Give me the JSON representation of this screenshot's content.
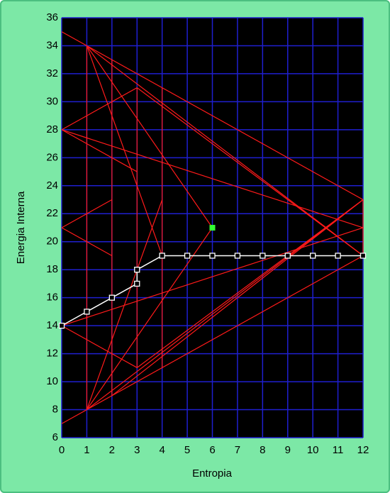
{
  "chart_data": {
    "type": "line",
    "x_label": "Entropia",
    "y_label": "Energia Interna",
    "xlim": [
      0,
      12
    ],
    "xticks": [
      0,
      1,
      2,
      3,
      4,
      5,
      6,
      7,
      8,
      9,
      10,
      11,
      12
    ],
    "ylim": [
      6,
      36
    ],
    "yticks": [
      6,
      8,
      10,
      12,
      14,
      16,
      18,
      20,
      22,
      24,
      26,
      28,
      30,
      32,
      34,
      36
    ],
    "grid": true,
    "grid_color": "#1f1fd0",
    "plot_background": "#000000",
    "series": [
      {
        "color": "#ffffff",
        "x": [
          0,
          1,
          2,
          3,
          3,
          4,
          5,
          6,
          7,
          8,
          9,
          10,
          11,
          12
        ],
        "y": [
          14,
          15,
          16,
          17,
          18,
          19,
          19,
          19,
          19,
          19,
          19,
          19,
          19,
          19
        ]
      }
    ],
    "point": {
      "color": "#33ff33",
      "x": 6,
      "y": 21
    },
    "segment_color": "#ff1a1a",
    "segments": [
      {
        "x": [
          0,
          12
        ],
        "y": [
          35,
          23
        ]
      },
      {
        "x": [
          0,
          12
        ],
        "y": [
          7,
          19
        ]
      },
      {
        "x": [
          1,
          1
        ],
        "y": [
          34,
          8
        ]
      },
      {
        "x": [
          0,
          3
        ],
        "y": [
          28,
          31
        ]
      },
      {
        "x": [
          0,
          3
        ],
        "y": [
          28,
          25
        ]
      },
      {
        "x": [
          0,
          2
        ],
        "y": [
          21,
          23
        ]
      },
      {
        "x": [
          0,
          2
        ],
        "y": [
          21,
          19
        ]
      },
      {
        "x": [
          0,
          3
        ],
        "y": [
          14,
          11
        ]
      },
      {
        "x": [
          1,
          12
        ],
        "y": [
          34,
          19
        ]
      },
      {
        "x": [
          1,
          12
        ],
        "y": [
          8,
          23
        ]
      },
      {
        "x": [
          2,
          12
        ],
        "y": [
          9,
          23
        ]
      },
      {
        "x": [
          3,
          12
        ],
        "y": [
          31,
          19
        ]
      },
      {
        "x": [
          3,
          12
        ],
        "y": [
          11,
          23
        ]
      },
      {
        "x": [
          1,
          6
        ],
        "y": [
          34,
          21
        ]
      },
      {
        "x": [
          1,
          6
        ],
        "y": [
          8,
          21
        ]
      },
      {
        "x": [
          12,
          12
        ],
        "y": [
          23,
          19
        ]
      },
      {
        "x": [
          2,
          2
        ],
        "y": [
          33,
          9
        ]
      },
      {
        "x": [
          3,
          3
        ],
        "y": [
          31,
          11
        ]
      },
      {
        "x": [
          4,
          4
        ],
        "y": [
          31,
          11
        ]
      },
      {
        "x": [
          1,
          4
        ],
        "y": [
          34,
          19
        ]
      },
      {
        "x": [
          1,
          4
        ],
        "y": [
          8,
          23
        ]
      },
      {
        "x": [
          0,
          12
        ],
        "y": [
          28,
          21
        ]
      },
      {
        "x": [
          0,
          12
        ],
        "y": [
          14,
          21
        ]
      }
    ]
  }
}
